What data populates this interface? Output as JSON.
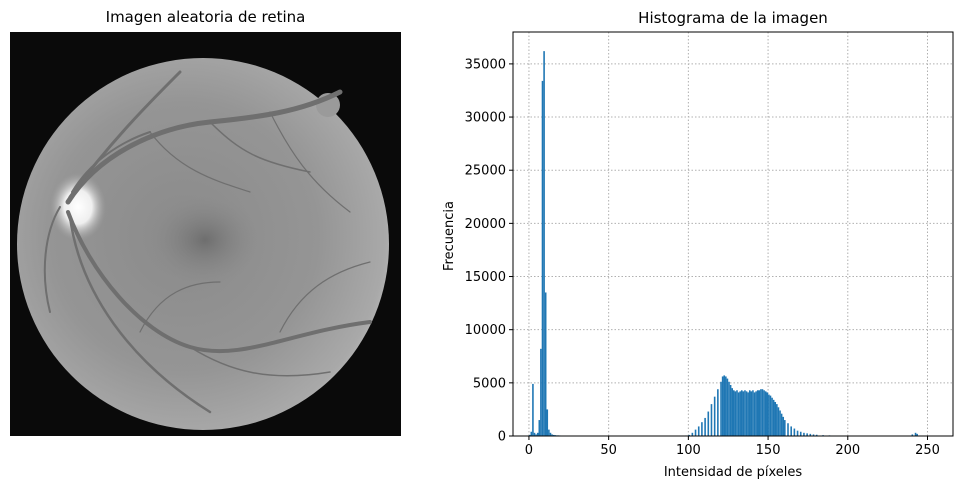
{
  "left_panel": {
    "title": "Imagen aleatoria de retina",
    "image_description_icon": "retina-fundus-photo"
  },
  "chart_data": {
    "type": "bar",
    "title": "Histograma de la imagen",
    "xlabel": "Intensidad de píxeles",
    "ylabel": "Frecuencia",
    "xlim": [
      -10,
      266
    ],
    "ylim": [
      0,
      38000
    ],
    "xticks": [
      0,
      50,
      100,
      150,
      200,
      250
    ],
    "yticks": [
      0,
      5000,
      10000,
      15000,
      20000,
      25000,
      30000,
      35000
    ],
    "grid": true,
    "bar_color": "#1f77b4",
    "bins": [
      [
        0,
        100
      ],
      [
        1,
        400
      ],
      [
        2,
        4900
      ],
      [
        3,
        300
      ],
      [
        4,
        150
      ],
      [
        5,
        300
      ],
      [
        6,
        1500
      ],
      [
        7,
        8200
      ],
      [
        8,
        33400
      ],
      [
        9,
        36200
      ],
      [
        10,
        13500
      ],
      [
        11,
        2500
      ],
      [
        12,
        600
      ],
      [
        13,
        300
      ],
      [
        14,
        150
      ],
      [
        15,
        100
      ],
      [
        16,
        80
      ],
      [
        17,
        60
      ],
      [
        18,
        60
      ],
      [
        19,
        50
      ],
      [
        20,
        40
      ],
      [
        22,
        30
      ],
      [
        24,
        30
      ],
      [
        26,
        25
      ],
      [
        28,
        20
      ],
      [
        30,
        20
      ],
      [
        35,
        10
      ],
      [
        96,
        20
      ],
      [
        98,
        50
      ],
      [
        100,
        100
      ],
      [
        102,
        300
      ],
      [
        104,
        600
      ],
      [
        106,
        900
      ],
      [
        108,
        1300
      ],
      [
        110,
        1700
      ],
      [
        112,
        2300
      ],
      [
        114,
        3000
      ],
      [
        116,
        3700
      ],
      [
        118,
        4400
      ],
      [
        120,
        5100
      ],
      [
        121,
        5600
      ],
      [
        122,
        5700
      ],
      [
        123,
        5600
      ],
      [
        124,
        5400
      ],
      [
        125,
        5100
      ],
      [
        126,
        4800
      ],
      [
        127,
        4500
      ],
      [
        128,
        4300
      ],
      [
        129,
        4200
      ],
      [
        130,
        4300
      ],
      [
        131,
        4100
      ],
      [
        132,
        4200
      ],
      [
        133,
        4300
      ],
      [
        134,
        4200
      ],
      [
        135,
        4300
      ],
      [
        136,
        4200
      ],
      [
        137,
        4100
      ],
      [
        138,
        4300
      ],
      [
        139,
        4200
      ],
      [
        140,
        4300
      ],
      [
        141,
        4100
      ],
      [
        142,
        4200
      ],
      [
        143,
        4300
      ],
      [
        144,
        4300
      ],
      [
        145,
        4400
      ],
      [
        146,
        4400
      ],
      [
        147,
        4300
      ],
      [
        148,
        4200
      ],
      [
        149,
        4100
      ],
      [
        150,
        3900
      ],
      [
        151,
        3800
      ],
      [
        152,
        3600
      ],
      [
        153,
        3400
      ],
      [
        154,
        3200
      ],
      [
        155,
        3000
      ],
      [
        156,
        2700
      ],
      [
        157,
        2400
      ],
      [
        158,
        2100
      ],
      [
        159,
        1800
      ],
      [
        160,
        1500
      ],
      [
        162,
        1200
      ],
      [
        164,
        900
      ],
      [
        166,
        700
      ],
      [
        168,
        500
      ],
      [
        170,
        400
      ],
      [
        172,
        300
      ],
      [
        174,
        250
      ],
      [
        176,
        200
      ],
      [
        178,
        150
      ],
      [
        180,
        120
      ],
      [
        184,
        80
      ],
      [
        188,
        60
      ],
      [
        192,
        40
      ],
      [
        196,
        30
      ],
      [
        200,
        20
      ],
      [
        205,
        15
      ],
      [
        210,
        10
      ],
      [
        215,
        10
      ],
      [
        220,
        8
      ],
      [
        225,
        8
      ],
      [
        230,
        10
      ],
      [
        240,
        150
      ],
      [
        242,
        300
      ],
      [
        243,
        200
      ],
      [
        245,
        20
      ]
    ]
  }
}
